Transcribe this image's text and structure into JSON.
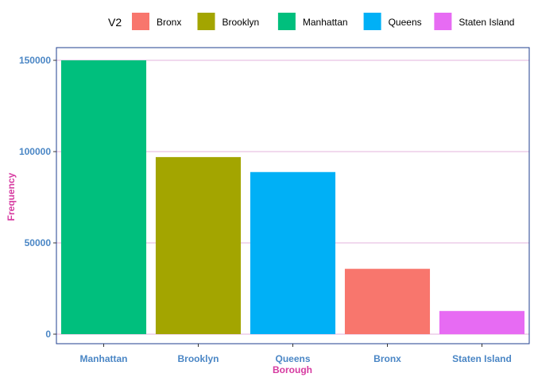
{
  "chart_data": {
    "type": "bar",
    "title": "",
    "xlabel": "Borough",
    "ylabel": "Frequency",
    "categories": [
      "Manhattan",
      "Brooklyn",
      "Queens",
      "Bronx",
      "Staten Island"
    ],
    "values": [
      150000,
      97000,
      88800,
      35800,
      12700
    ],
    "fill_groups": [
      "Manhattan",
      "Brooklyn",
      "Queens",
      "Bronx",
      "Staten Island"
    ],
    "ylim": [
      0,
      158000
    ],
    "yticks": [
      0,
      50000,
      100000,
      150000
    ],
    "ytick_labels": [
      "0",
      "50000",
      "100000",
      "150000"
    ],
    "grid": true,
    "legend": {
      "position": "top",
      "title": "V2",
      "items": [
        {
          "label": "Bronx",
          "color": "#F8766D"
        },
        {
          "label": "Brooklyn",
          "color": "#A3A500"
        },
        {
          "label": "Manhattan",
          "color": "#00BF7D"
        },
        {
          "label": "Queens",
          "color": "#00B0F6"
        },
        {
          "label": "Staten Island",
          "color": "#E76BF3"
        }
      ]
    },
    "colors": {
      "axis_line": "#1f3f8f",
      "grid_major": "#e3b3de",
      "tick_label": "#4a86c5",
      "axis_title": "#d63aa0"
    }
  }
}
